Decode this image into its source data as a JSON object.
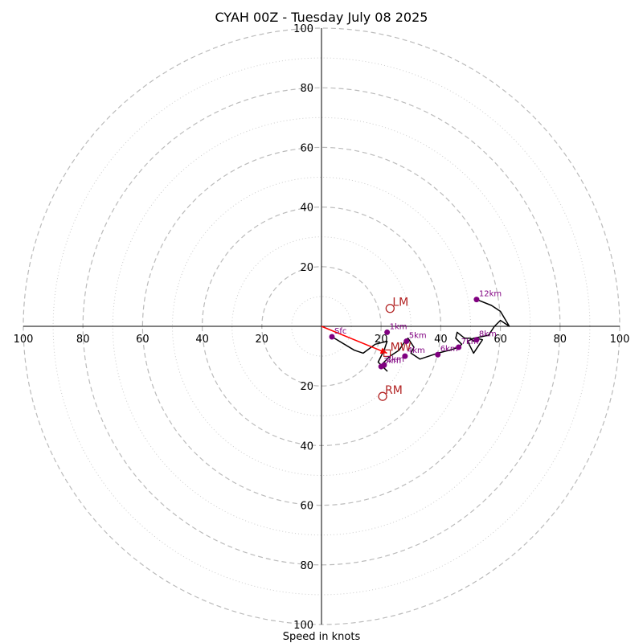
{
  "chart_data": {
    "type": "hodograph",
    "title": "CYAH 00Z - Tuesday July 08 2025",
    "xlabel": "Speed in knots",
    "max_speed": 100,
    "major_rings": [
      20,
      40,
      60,
      80,
      100
    ],
    "minor_rings": [
      10,
      30,
      50,
      70,
      90
    ],
    "tick_labels": [
      "20",
      "40",
      "60",
      "80",
      "100"
    ],
    "colors": {
      "trace": "#000000",
      "height_points": "#800080",
      "motion_markers": "#b22222",
      "mean_wind_arrow": "#ff0000",
      "ring_major": "#bbbbbb",
      "ring_minor": "#cccccc"
    },
    "trace": [
      [
        3.5,
        -3.5
      ],
      [
        11,
        -8
      ],
      [
        14,
        -9
      ],
      [
        18,
        -6
      ],
      [
        22,
        -5
      ],
      [
        21,
        -8
      ],
      [
        19,
        -12
      ],
      [
        22,
        -15
      ],
      [
        20,
        -13
      ],
      [
        21,
        -12
      ],
      [
        23,
        -10
      ],
      [
        26,
        -8
      ],
      [
        28,
        -5
      ],
      [
        29,
        -4
      ],
      [
        31,
        -7
      ],
      [
        30,
        -9
      ],
      [
        33,
        -11
      ],
      [
        39,
        -9
      ],
      [
        43,
        -8
      ],
      [
        46,
        -7
      ],
      [
        47,
        -6
      ],
      [
        45,
        -4
      ],
      [
        45.5,
        -2
      ],
      [
        48,
        -4
      ],
      [
        50,
        -4
      ],
      [
        51,
        -5
      ],
      [
        52,
        -4
      ],
      [
        54,
        -4.5
      ],
      [
        51,
        -9
      ],
      [
        49,
        -5
      ],
      [
        51,
        -4
      ],
      [
        56,
        -3
      ],
      [
        58,
        0
      ],
      [
        60,
        2
      ],
      [
        63,
        0
      ],
      [
        60,
        5
      ],
      [
        57,
        7
      ],
      [
        52,
        9
      ]
    ],
    "height_points": [
      {
        "label": "Sfc",
        "u": 3.5,
        "v": -3.5
      },
      {
        "label": "1km",
        "u": 22,
        "v": -2
      },
      {
        "label": "2km",
        "u": 21,
        "v": -13
      },
      {
        "label": "3km",
        "u": 20,
        "v": -13.5
      },
      {
        "label": "4km",
        "u": 28,
        "v": -10
      },
      {
        "label": "5km",
        "u": 28.5,
        "v": -5
      },
      {
        "label": "6km",
        "u": 39,
        "v": -9.5
      },
      {
        "label": "7km",
        "u": 46,
        "v": -7
      },
      {
        "label": "8km",
        "u": 52,
        "v": -4.5
      },
      {
        "label": "12km",
        "u": 52,
        "v": 9
      }
    ],
    "storm_motions": [
      {
        "label": "LM",
        "u": 23,
        "v": 6
      },
      {
        "label": "RM",
        "u": 20.5,
        "v": -23.5
      }
    ],
    "mean_wind": {
      "label": "MW",
      "u": 22,
      "v": -9
    }
  }
}
